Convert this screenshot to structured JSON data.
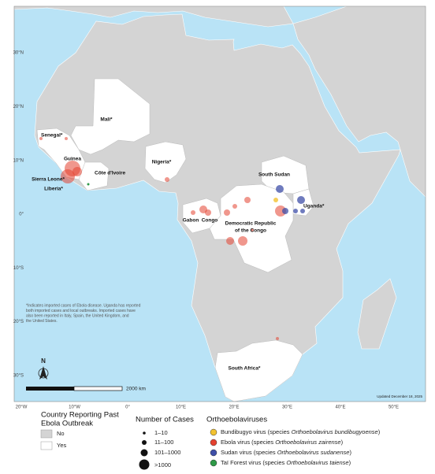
{
  "map": {
    "lat_labels": [
      "30°N",
      "20°N",
      "10°N",
      "0°",
      "10°S",
      "20°S",
      "30°S"
    ],
    "lon_labels": [
      "20°W",
      "10°W",
      "0°",
      "10°E",
      "20°E",
      "30°E",
      "40°E",
      "50°E"
    ],
    "countries": [
      "Mali*",
      "Senegal*",
      "Guinea",
      "Côte d'Ivoire",
      "Sierra Leone*",
      "Liberia*",
      "Nigeria*",
      "South Sudan",
      "Uganda*",
      "Gabon",
      "Congo",
      "Democratic Republic",
      "of the Congo",
      "South Africa*"
    ],
    "note": [
      "*Indicates imported cases of Ebola disease. Uganda has reported",
      "both imported cases and local outbreaks. Imported cases have",
      "also been reported in Italy, Spain, the United Kingdom, and",
      "the United States."
    ],
    "north": "N",
    "scale": "2000 km",
    "updated": "Updated December 18, 2025"
  },
  "legend": {
    "reporting": {
      "title": [
        "Country Reporting Past",
        "Ebola Outbreak"
      ],
      "items": [
        "No",
        "Yes"
      ]
    },
    "cases": {
      "title": "Number of Cases",
      "items": [
        "1–10",
        "11–100",
        "101–1000",
        ">1000"
      ]
    },
    "viruses": {
      "title": "Orthoebolaviruses",
      "items": [
        {
          "name": "Bundibugyo virus (species ",
          "species": "Orthoebolavirus bundibugyoense",
          "end": ")"
        },
        {
          "name": "Ebola virus (species ",
          "species": "Orthoebolavirus zairense",
          "end": ")"
        },
        {
          "name": "Sudan virus (species ",
          "species": "Orthoebolavirus sudanense",
          "end": ")"
        },
        {
          "name": "Taï Forest virus (species ",
          "species": "Orthoebolavirus taiense",
          "end": ")"
        }
      ]
    }
  }
}
